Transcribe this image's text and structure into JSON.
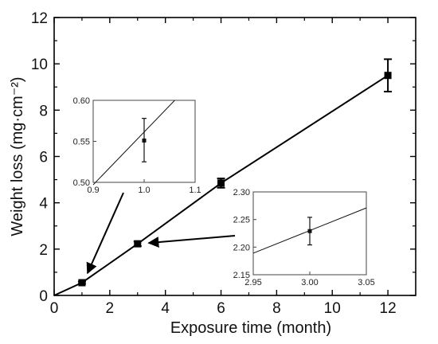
{
  "chart_data": {
    "type": "line",
    "xlabel": "Exposure time (month)",
    "ylabel": "Weight loss (mg·cm⁻²)",
    "xlim": [
      0,
      13
    ],
    "ylim": [
      0,
      12
    ],
    "xticks": [
      "0",
      "2",
      "4",
      "6",
      "8",
      "10",
      "12"
    ],
    "yticks": [
      "0",
      "2",
      "4",
      "6",
      "8",
      "10",
      "12"
    ],
    "grid": false,
    "series": [
      {
        "points": [
          {
            "x": 0,
            "y": 0
          },
          {
            "x": 1,
            "y": 0.55,
            "err": 0.05
          },
          {
            "x": 3,
            "y": 2.23,
            "err": 0.1
          },
          {
            "x": 6,
            "y": 4.85,
            "err": 0.2
          },
          {
            "x": 12,
            "y": 9.5,
            "err": 0.7
          }
        ]
      }
    ],
    "insets": [
      {
        "xlim": [
          0.9,
          1.1
        ],
        "ylim": [
          0.5,
          0.6
        ],
        "xticks": [
          "0.9",
          "1.0",
          "1.1"
        ],
        "yticks": [
          "0.50",
          "0.55",
          "0.60"
        ],
        "line": [
          [
            0.9,
            0.497
          ],
          [
            1.06,
            0.6
          ]
        ],
        "point": {
          "x": 1.0,
          "y": 0.551,
          "err_low": 0.525,
          "err_high": 0.578
        }
      },
      {
        "xlim": [
          2.95,
          3.05
        ],
        "ylim": [
          2.15,
          2.3
        ],
        "xticks": [
          "2.95",
          "3.00",
          "3.05"
        ],
        "yticks": [
          "2.15",
          "2.20",
          "2.25",
          "2.30"
        ],
        "line": [
          [
            2.95,
            2.189
          ],
          [
            3.05,
            2.271
          ]
        ],
        "point": {
          "x": 3.0,
          "y": 2.229,
          "err_low": 2.204,
          "err_high": 2.254
        }
      }
    ]
  }
}
